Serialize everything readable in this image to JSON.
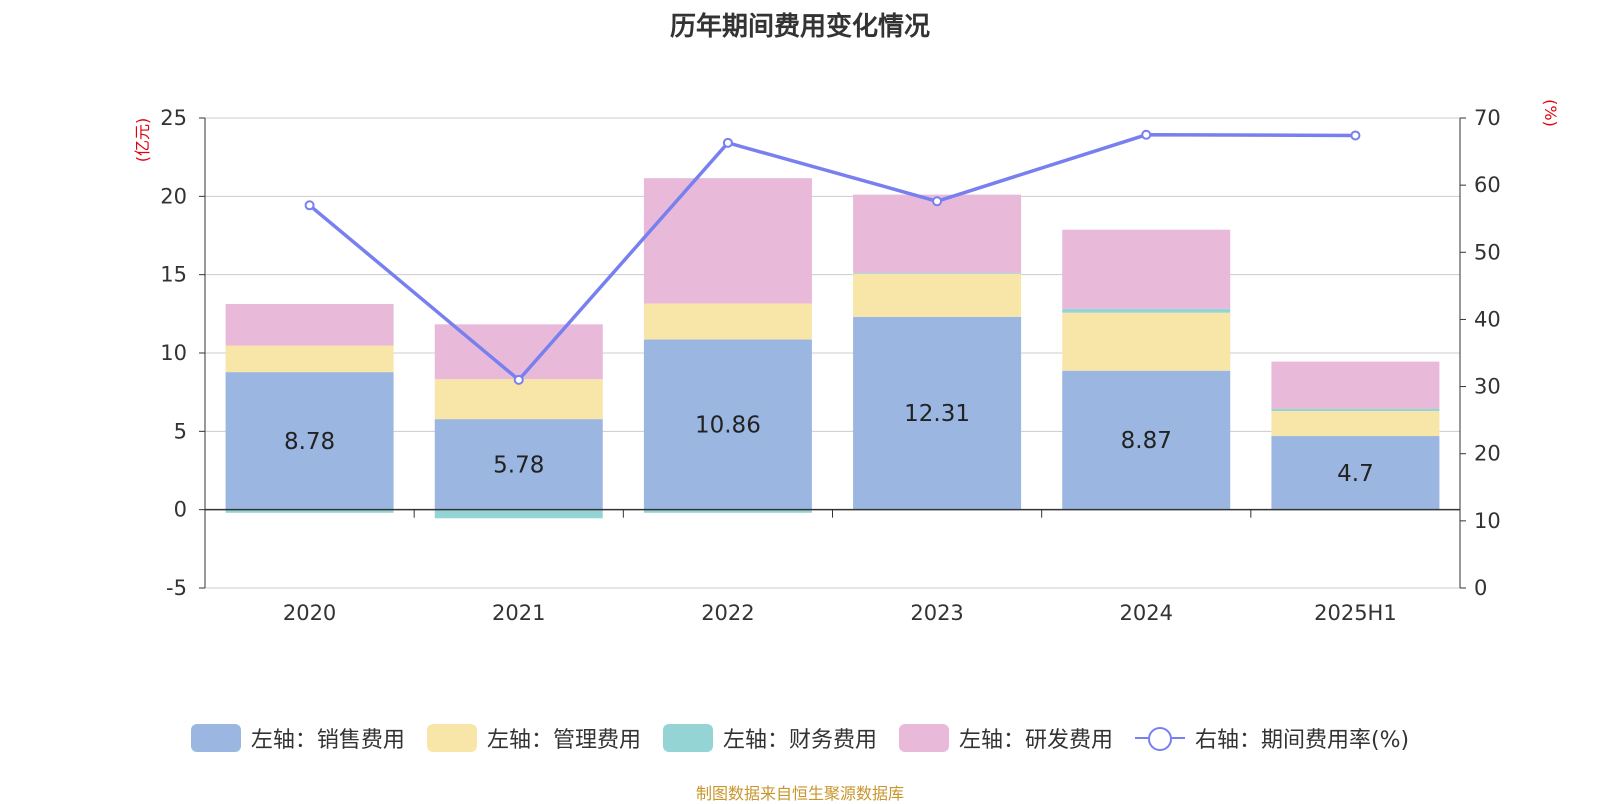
{
  "chart_data": {
    "type": "bar",
    "title": "历年期间费用变化情况",
    "categories": [
      "2020",
      "2021",
      "2022",
      "2023",
      "2024",
      "2025H1"
    ],
    "y_left": {
      "label": "(亿元)",
      "min": -5,
      "max": 25,
      "ticks": [
        -5,
        0,
        5,
        10,
        15,
        20,
        25
      ]
    },
    "y_right": {
      "label": "(%)",
      "min": 0,
      "max": 70,
      "ticks": [
        0,
        10,
        20,
        30,
        40,
        50,
        60,
        70
      ]
    },
    "grid": true,
    "legend_position": "bottom",
    "series": [
      {
        "name": "左轴：销售费用",
        "axis": "left",
        "kind": "bar",
        "color": "#9bb7e1",
        "values": [
          8.78,
          5.78,
          10.86,
          12.31,
          8.87,
          4.7
        ],
        "labels_shown": true
      },
      {
        "name": "左轴：管理费用",
        "axis": "left",
        "kind": "bar",
        "color": "#f8e6a8",
        "values": [
          1.7,
          2.55,
          2.3,
          2.75,
          3.7,
          1.6
        ]
      },
      {
        "name": "左轴：财务费用",
        "axis": "left",
        "kind": "bar",
        "color": "#94d4d4",
        "values": [
          -0.2,
          -0.55,
          -0.2,
          0.05,
          0.25,
          0.15
        ]
      },
      {
        "name": "左轴：研发费用",
        "axis": "left",
        "kind": "bar",
        "color": "#e8b9d9",
        "values": [
          2.65,
          3.5,
          8.0,
          5.0,
          5.05,
          3.0
        ]
      },
      {
        "name": "右轴：期间费用率(%)",
        "axis": "right",
        "kind": "line",
        "color": "#7780ee",
        "values": [
          57,
          31,
          66.3,
          57.6,
          67.5,
          67.4
        ]
      }
    ]
  },
  "footer": "制图数据来自恒生聚源数据库"
}
